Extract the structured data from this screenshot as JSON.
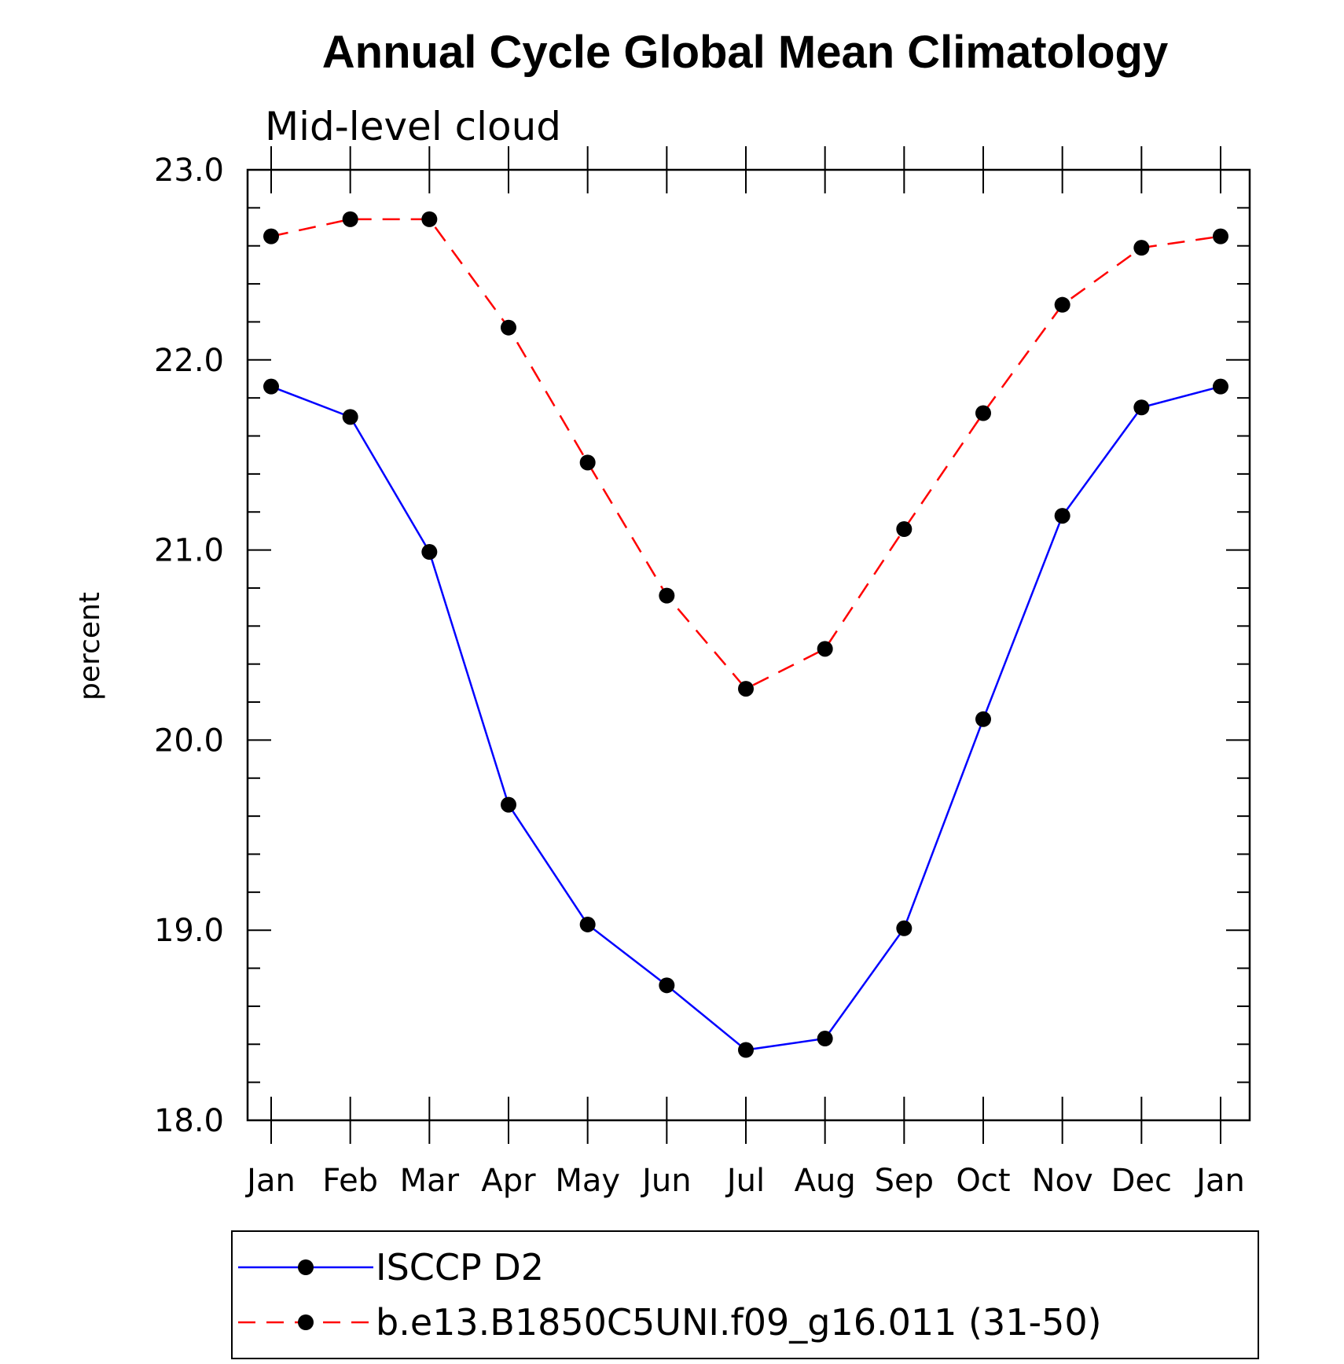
{
  "chart_data": {
    "type": "line",
    "title": "Annual Cycle Global Mean Climatology",
    "subtitle": "Mid-level cloud",
    "xlabel": "",
    "ylabel": "percent",
    "categories": [
      "Jan",
      "Feb",
      "Mar",
      "Apr",
      "May",
      "Jun",
      "Jul",
      "Aug",
      "Sep",
      "Oct",
      "Nov",
      "Dec",
      "Jan"
    ],
    "ylim": [
      18.0,
      23.0
    ],
    "yticks": [
      "18.0",
      "19.0",
      "20.0",
      "21.0",
      "22.0",
      "23.0"
    ],
    "grid": false,
    "legend_position": "bottom",
    "series": [
      {
        "name": "ISCCP D2",
        "color": "#0000ff",
        "line_style": "solid",
        "marker": "filled-circle",
        "values": [
          21.86,
          21.7,
          20.99,
          19.66,
          19.03,
          18.71,
          18.37,
          18.43,
          19.01,
          20.11,
          21.18,
          21.75,
          21.86
        ]
      },
      {
        "name": "b.e13.B1850C5UNI.f09_g16.011 (31-50)",
        "color": "#ff0000",
        "line_style": "dashed",
        "marker": "filled-circle",
        "values": [
          22.65,
          22.74,
          22.74,
          22.17,
          21.46,
          20.76,
          20.27,
          20.48,
          21.11,
          21.72,
          22.29,
          22.59,
          22.65
        ]
      }
    ]
  }
}
